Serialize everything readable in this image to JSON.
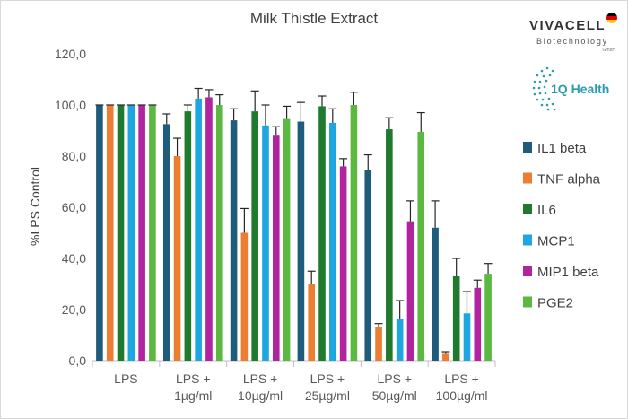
{
  "logos": {
    "vivacell": {
      "brand": "VIVACELL",
      "sub": "Biotechnology",
      "gmbh": "GmbH"
    },
    "iqhealth": {
      "name": "1Q Health"
    }
  },
  "colors": {
    "IL1 beta": "#1f5b7a",
    "TNF alpha": "#ed7d31",
    "IL6": "#1f7a2e",
    "MCP1": "#1ea6e0",
    "MIP1 beta": "#b0259f",
    "PGE2": "#5bb840"
  },
  "chart_data": {
    "type": "bar",
    "title": "Milk Thistle Extract",
    "xlabel": "",
    "ylabel": "%LPS Control",
    "ylim": [
      0,
      120
    ],
    "yticks": [
      "0,0",
      "20,0",
      "40,0",
      "60,0",
      "80,0",
      "100,0",
      "120,0"
    ],
    "ytick_values": [
      0,
      20,
      40,
      60,
      80,
      100,
      120
    ],
    "legend_position": "right",
    "categories": [
      [
        "LPS"
      ],
      [
        "LPS +",
        "1µg/ml"
      ],
      [
        "LPS +",
        "10µg/ml"
      ],
      [
        "LPS +",
        "25µg/ml"
      ],
      [
        "LPS +",
        "50µg/ml"
      ],
      [
        "LPS +",
        "100µg/ml"
      ]
    ],
    "series": [
      {
        "name": "IL1 beta",
        "values": [
          100,
          92.5,
          94,
          93.5,
          74.5,
          52
        ],
        "errors": [
          0,
          4,
          4.5,
          7.5,
          6,
          10.5
        ]
      },
      {
        "name": "TNF alpha",
        "values": [
          100,
          80,
          50,
          30,
          13,
          3
        ],
        "errors": [
          0,
          7,
          9.5,
          5,
          1.5,
          0.5
        ]
      },
      {
        "name": "IL6",
        "values": [
          100,
          97.5,
          97.5,
          99.5,
          90.5,
          33
        ],
        "errors": [
          0,
          2.5,
          8,
          4,
          4.5,
          7
        ]
      },
      {
        "name": "MCP1",
        "values": [
          100,
          102.5,
          92,
          93,
          16.5,
          18.5
        ],
        "errors": [
          0,
          4,
          8,
          5.5,
          7,
          8.5
        ]
      },
      {
        "name": "MIP1 beta",
        "values": [
          100,
          103,
          88,
          76,
          54.5,
          28.5
        ],
        "errors": [
          0,
          3,
          3.5,
          3,
          8,
          3
        ]
      },
      {
        "name": "PGE2",
        "values": [
          100,
          100,
          94.5,
          100,
          89.5,
          34
        ],
        "errors": [
          0,
          4,
          5,
          5,
          7.5,
          4
        ]
      }
    ]
  }
}
